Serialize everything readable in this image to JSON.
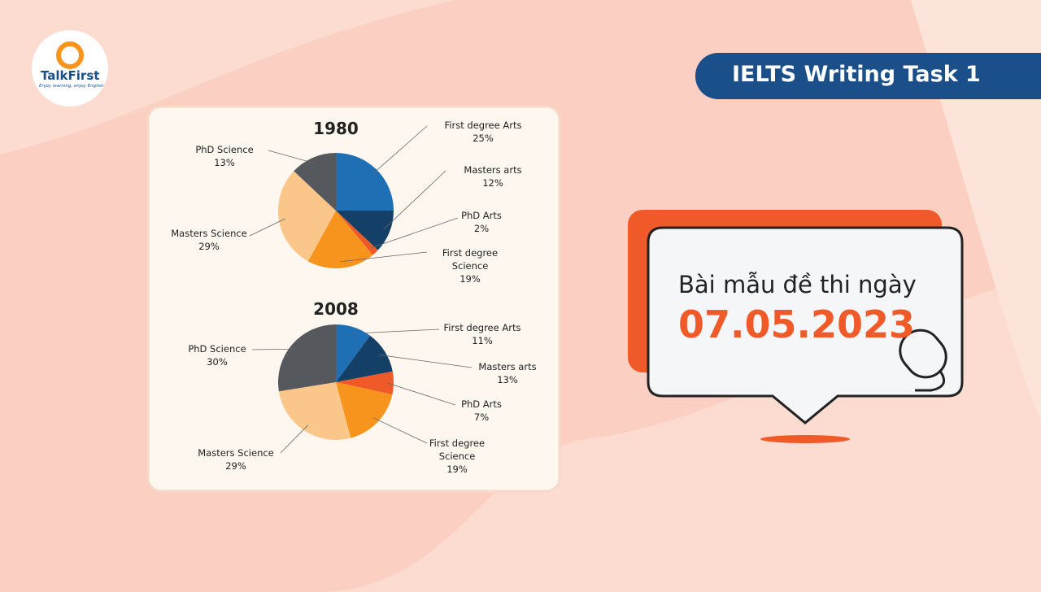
{
  "logo": {
    "name": "TalkFirst",
    "slogan": "Enjoy learning, enjoy English"
  },
  "banner": "IELTS Writing Task 1",
  "card": {
    "line1": "Bài mẫu đề thi ngày",
    "date": "07.05.2023"
  },
  "chart_data": [
    {
      "type": "pie",
      "title": "1980",
      "categories": [
        "First degree Arts",
        "Masters arts",
        "PhD Arts",
        "First degree Science",
        "Masters Science",
        "PhD Science"
      ],
      "values": [
        25,
        12,
        2,
        19,
        29,
        13
      ],
      "value_labels": [
        "25%",
        "12%",
        "2%",
        "19%",
        "29%",
        "13%"
      ],
      "colors": [
        "#1f6fb5",
        "#143f66",
        "#f05a28",
        "#f7941d",
        "#fbc68a",
        "#55595e"
      ]
    },
    {
      "type": "pie",
      "title": "2008",
      "categories": [
        "First degree Arts",
        "Masters arts",
        "PhD Arts",
        "First degree Science",
        "Masters Science",
        "PhD Science"
      ],
      "values": [
        11,
        13,
        7,
        19,
        29,
        30
      ],
      "value_labels": [
        "11%",
        "13%",
        "7%",
        "19%",
        "29%",
        "30%"
      ],
      "colors": [
        "#1f6fb5",
        "#143f66",
        "#f05a28",
        "#f7941d",
        "#fbc68a",
        "#55595e"
      ]
    }
  ]
}
